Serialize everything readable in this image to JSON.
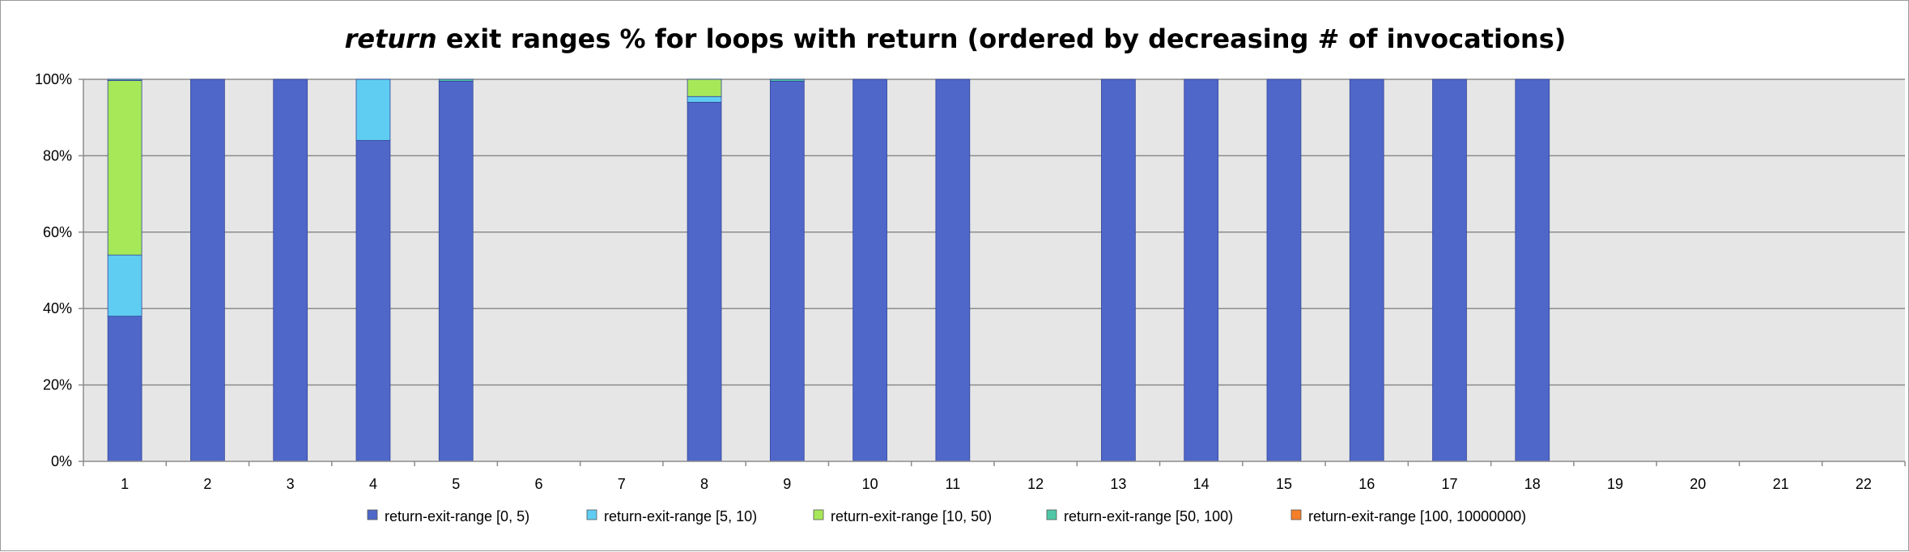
{
  "chart_data": {
    "type": "bar",
    "stacked": true,
    "title_emphasis": "return",
    "title_rest": " exit ranges % for loops with return (ordered by decreasing # of invocations)",
    "xlabel": "",
    "ylabel": "",
    "ylim": [
      0,
      100
    ],
    "y_ticks": [
      "0%",
      "20%",
      "40%",
      "60%",
      "80%",
      "100%"
    ],
    "y_tick_values": [
      0,
      20,
      40,
      60,
      80,
      100
    ],
    "grid": true,
    "legend_position": "bottom",
    "plot_background": "#e6e6e6",
    "categories": [
      "1",
      "2",
      "3",
      "4",
      "5",
      "6",
      "7",
      "8",
      "9",
      "10",
      "11",
      "12",
      "13",
      "14",
      "15",
      "16",
      "17",
      "18",
      "19",
      "20",
      "21",
      "22"
    ],
    "series": [
      {
        "name": "return-exit-range [0, 5)",
        "color": "#4f67c9",
        "values": [
          38,
          100,
          100,
          84,
          99.5,
          0,
          0,
          94,
          99.5,
          100,
          100,
          0,
          100,
          100,
          100,
          100,
          100,
          100,
          0,
          0,
          0,
          0
        ]
      },
      {
        "name": "return-exit-range [5, 10)",
        "color": "#5fcdf2",
        "values": [
          16,
          0,
          0,
          16,
          0,
          0,
          0,
          1.5,
          0,
          0,
          0,
          0,
          0,
          0,
          0,
          0,
          0,
          0,
          0,
          0,
          0,
          0
        ]
      },
      {
        "name": "return-exit-range [10, 50)",
        "color": "#a6e858",
        "values": [
          45.7,
          0,
          0,
          0,
          0,
          0,
          0,
          4.5,
          0,
          0,
          0,
          0,
          0,
          0,
          0,
          0,
          0,
          0,
          0,
          0,
          0,
          0
        ]
      },
      {
        "name": "return-exit-range [50, 100)",
        "color": "#4fc7a6",
        "values": [
          0.3,
          0,
          0,
          0,
          0.5,
          0,
          0,
          0,
          0.5,
          0,
          0,
          0,
          0,
          0,
          0,
          0,
          0,
          0,
          0,
          0,
          0,
          0
        ]
      },
      {
        "name": "return-exit-range [100, 10000000)",
        "color": "#f57f28",
        "values": [
          0,
          0,
          0,
          0,
          0,
          0,
          0,
          0,
          0,
          0,
          0,
          0,
          0,
          0,
          0,
          0,
          0,
          0,
          0,
          0,
          0,
          0
        ]
      }
    ]
  }
}
